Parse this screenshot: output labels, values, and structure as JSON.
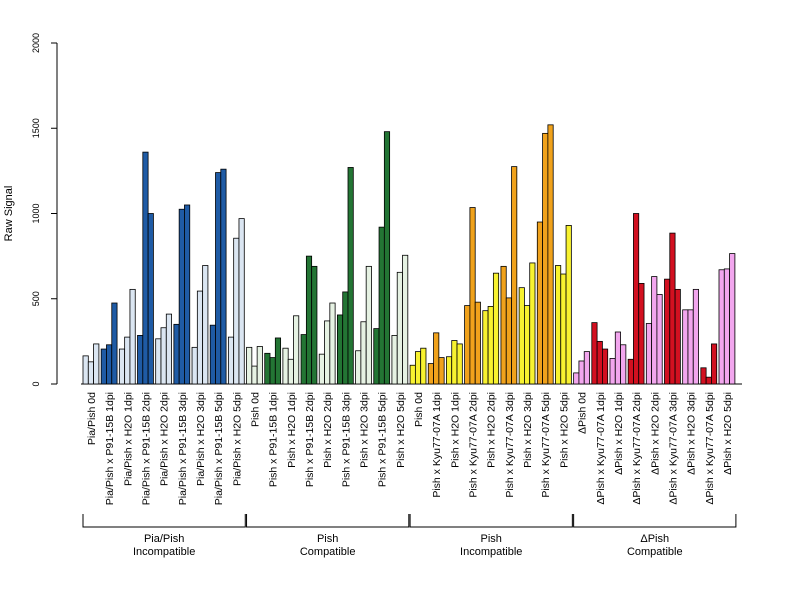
{
  "chart_data": {
    "type": "bar",
    "title": "",
    "xlabel": "",
    "ylabel": "Raw Signal",
    "ylim": [
      0,
      2000
    ],
    "yticks": [
      "0",
      "500",
      "1000",
      "1500",
      "2000"
    ],
    "grid": false,
    "legend": "none",
    "groups": [
      {
        "line1": "Pia/Pish",
        "line2": "Incompatible",
        "categories": [
          {
            "label": "Pia/Pish 0d",
            "light": "#dbe6f2",
            "dark": "#dbe6f2",
            "values": [
              165,
              130,
              235
            ]
          },
          {
            "label": "Pia/Pish x P91-15B 1dpi",
            "light": "#1f5ba5",
            "dark": "#1f5ba5",
            "values": [
              205,
              230,
              475
            ]
          },
          {
            "label": "Pia/Pish x H2O 1dpi",
            "light": "#dbe6f2",
            "dark": "#dbe6f2",
            "values": [
              205,
              275,
              555
            ]
          },
          {
            "label": "Pia/Pish x P91-15B 2dpi",
            "light": "#1f5ba5",
            "dark": "#1f5ba5",
            "values": [
              285,
              1360,
              1000
            ]
          },
          {
            "label": "Pia/Pish x H2O 2dpi",
            "light": "#dbe6f2",
            "dark": "#dbe6f2",
            "values": [
              265,
              330,
              410
            ]
          },
          {
            "label": "Pia/Pish x P91-15B 3dpi",
            "light": "#1f5ba5",
            "dark": "#1f5ba5",
            "values": [
              350,
              1025,
              1050
            ]
          },
          {
            "label": "Pia/Pish x H2O 3dpi",
            "light": "#dbe6f2",
            "dark": "#dbe6f2",
            "values": [
              215,
              545,
              695
            ]
          },
          {
            "label": "Pia/Pish x P91-15B 5dpi",
            "light": "#1f5ba5",
            "dark": "#1f5ba5",
            "values": [
              345,
              1240,
              1260
            ]
          },
          {
            "label": "Pia/Pish x H2O 5dpi",
            "light": "#dbe6f2",
            "dark": "#dbe6f2",
            "values": [
              275,
              855,
              970
            ]
          }
        ]
      },
      {
        "line1": "Pish",
        "line2": "Compatible",
        "categories": [
          {
            "label": "Pish 0d",
            "light": "#e6f2e3",
            "dark": "#e6f2e3",
            "values": [
              215,
              105,
              220
            ]
          },
          {
            "label": "Pish x P91-15B 1dpi",
            "light": "#237534",
            "dark": "#237534",
            "values": [
              180,
              155,
              270
            ]
          },
          {
            "label": "Pish x H2O 1dpi",
            "light": "#e6f2e3",
            "dark": "#e6f2e3",
            "values": [
              210,
              145,
              400
            ]
          },
          {
            "label": "Pish x P91-15B 2dpi",
            "light": "#237534",
            "dark": "#237534",
            "values": [
              290,
              750,
              690
            ]
          },
          {
            "label": "Pish x H2O 2dpi",
            "light": "#e6f2e3",
            "dark": "#e6f2e3",
            "values": [
              175,
              370,
              475
            ]
          },
          {
            "label": "Pish x P91-15B 3dpi",
            "light": "#237534",
            "dark": "#237534",
            "values": [
              405,
              540,
              1270
            ]
          },
          {
            "label": "Pish x H2O 3dpi",
            "light": "#e6f2e3",
            "dark": "#e6f2e3",
            "values": [
              195,
              365,
              690
            ]
          },
          {
            "label": "Pish x P91-15B 5dpi",
            "light": "#237534",
            "dark": "#237534",
            "values": [
              325,
              920,
              1480
            ]
          },
          {
            "label": "Pish x H2O 5dpi",
            "light": "#e6f2e3",
            "dark": "#e6f2e3",
            "values": [
              285,
              655,
              755
            ]
          }
        ]
      },
      {
        "line1": "Pish",
        "line2": "Incompatible",
        "categories": [
          {
            "label": "Pish 0d",
            "light": "#f8f230",
            "dark": "#f8f230",
            "values": [
              110,
              190,
              210
            ]
          },
          {
            "label": "Pish x Kyu77-07A 1dpi",
            "light": "#f0a21c",
            "dark": "#f0a21c",
            "values": [
              120,
              300,
              155
            ]
          },
          {
            "label": "Pish x H2O 1dpi",
            "light": "#f8f230",
            "dark": "#f8f230",
            "values": [
              160,
              255,
              235
            ]
          },
          {
            "label": "Pish x Kyu77-07A 2dpi",
            "light": "#f0a21c",
            "dark": "#f0a21c",
            "values": [
              460,
              1035,
              480
            ]
          },
          {
            "label": "Pish x H2O 2dpi",
            "light": "#f8f230",
            "dark": "#f8f230",
            "values": [
              430,
              455,
              650
            ]
          },
          {
            "label": "Pish x Kyu77-07A 3dpi",
            "light": "#f0a21c",
            "dark": "#f0a21c",
            "values": [
              690,
              505,
              1275
            ]
          },
          {
            "label": "Pish x H2O 3dpi",
            "light": "#f8f230",
            "dark": "#f8f230",
            "values": [
              565,
              460,
              710
            ]
          },
          {
            "label": "Pish x Kyu77-07A 5dpi",
            "light": "#f0a21c",
            "dark": "#f0a21c",
            "values": [
              950,
              1470,
              1520
            ]
          },
          {
            "label": "Pish x H2O 5dpi",
            "light": "#f8f230",
            "dark": "#f8f230",
            "values": [
              695,
              645,
              930
            ]
          }
        ]
      },
      {
        "line1": "ΔPish",
        "line2": "Compatible",
        "categories": [
          {
            "label": "ΔPish 0d",
            "light": "#f2a6ee",
            "dark": "#f2a6ee",
            "values": [
              65,
              135,
              190
            ]
          },
          {
            "label": "ΔPish x Kyu77-07A 1dpi",
            "light": "#d21020",
            "dark": "#d21020",
            "values": [
              360,
              250,
              205
            ]
          },
          {
            "label": "ΔPish x H2O 1dpi",
            "light": "#f2a6ee",
            "dark": "#f2a6ee",
            "values": [
              150,
              305,
              230
            ]
          },
          {
            "label": "ΔPish x Kyu77-07A 2dpi",
            "light": "#d21020",
            "dark": "#d21020",
            "values": [
              145,
              1000,
              590
            ]
          },
          {
            "label": "ΔPish x H2O 2dpi",
            "light": "#f2a6ee",
            "dark": "#f2a6ee",
            "values": [
              355,
              630,
              525
            ]
          },
          {
            "label": "ΔPish x Kyu77-07A 3dpi",
            "light": "#d21020",
            "dark": "#d21020",
            "values": [
              615,
              885,
              555
            ]
          },
          {
            "label": "ΔPish x H2O 3dpi",
            "light": "#f2a6ee",
            "dark": "#f2a6ee",
            "values": [
              435,
              435,
              555
            ]
          },
          {
            "label": "ΔPish x Kyu77-07A 5dpi",
            "light": "#d21020",
            "dark": "#d21020",
            "values": [
              95,
              40,
              235
            ]
          },
          {
            "label": "ΔPish x H2O 5dpi",
            "light": "#f2a6ee",
            "dark": "#f2a6ee",
            "values": [
              670,
              675,
              765
            ]
          }
        ]
      }
    ]
  }
}
